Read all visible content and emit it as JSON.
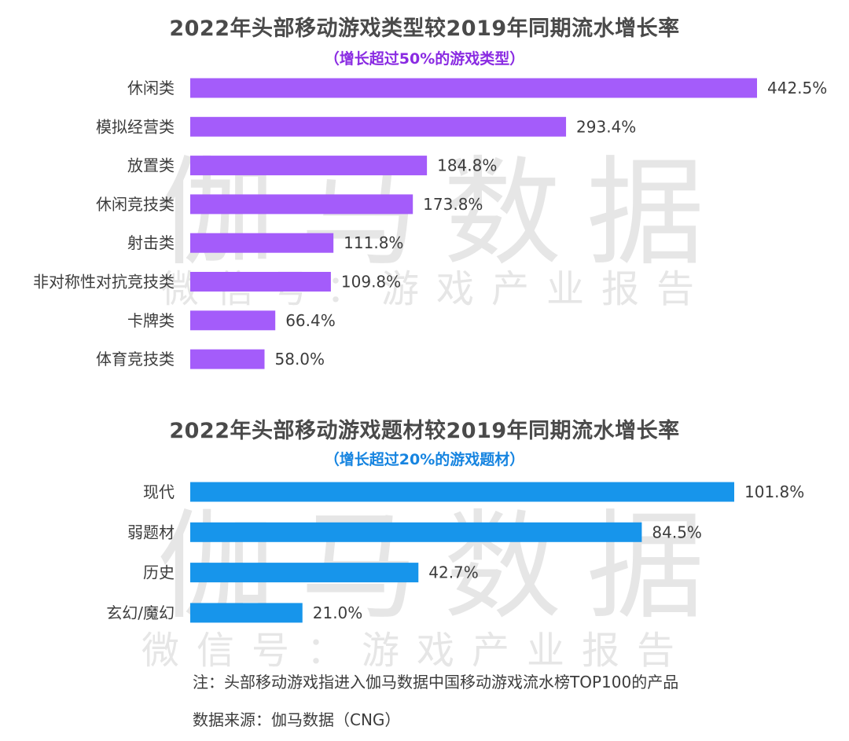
{
  "watermark": {
    "brand": "伽马数据",
    "wechat": "微信号：游戏产业报告"
  },
  "colors": {
    "chart1": "#a45cfa",
    "chart2": "#1795eb",
    "subtitle1": "#8a2be2",
    "subtitle2": "#1684e0"
  },
  "chart_data": [
    {
      "type": "bar",
      "orientation": "horizontal",
      "title": "2022年头部移动游戏类型较2019年同期流水增长率",
      "subtitle": "（增长超过50%的游戏类型）",
      "categories": [
        "休闲类",
        "模拟经营类",
        "放置类",
        "休闲竞技类",
        "射击类",
        "非对称性对抗竞技类",
        "卡牌类",
        "体育竞技类"
      ],
      "values": [
        442.5,
        293.4,
        184.8,
        173.8,
        111.8,
        109.8,
        66.4,
        58.0
      ],
      "labels": [
        "442.5%",
        "293.4%",
        "184.8%",
        "173.8%",
        "111.8%",
        "109.8%",
        "66.4%",
        "58.0%"
      ],
      "xmax": 442.5,
      "color": "#a45cfa"
    },
    {
      "type": "bar",
      "orientation": "horizontal",
      "title": "2022年头部移动游戏题材较2019年同期流水增长率",
      "subtitle": "（增长超过20%的游戏题材）",
      "categories": [
        "现代",
        "弱题材",
        "历史",
        "玄幻/魔幻"
      ],
      "values": [
        101.8,
        84.5,
        42.7,
        21.0
      ],
      "labels": [
        "101.8%",
        "84.5%",
        "42.7%",
        "21.0%"
      ],
      "xmax": 101.8,
      "color": "#1795eb"
    }
  ],
  "notes": {
    "note": "注：头部移动游戏指进入伽马数据中国移动游戏流水榜TOP100的产品",
    "source": "数据来源：伽马数据（CNG）"
  }
}
